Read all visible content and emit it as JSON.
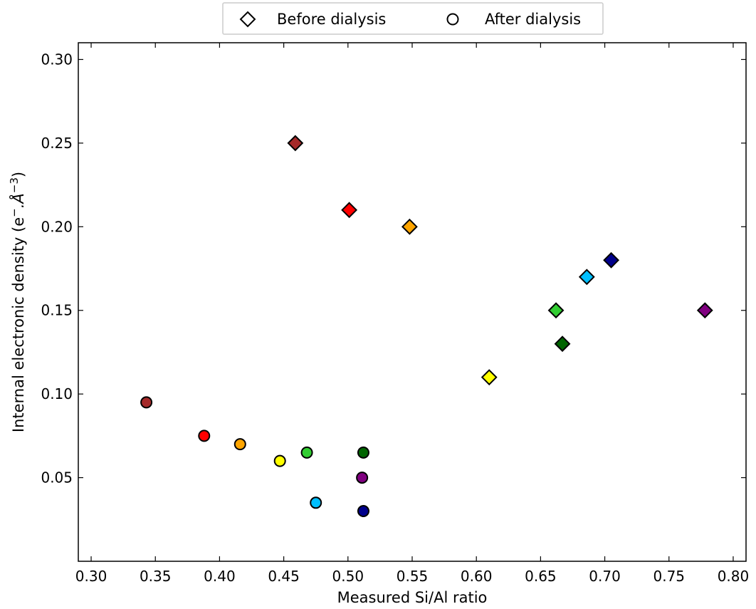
{
  "chart_data": {
    "type": "scatter",
    "xlabel": "Measured Si/Al ratio",
    "ylabel": "Internal electronic density (e",
    "ylabel_sup1": "−",
    "ylabel_mid": ".Å",
    "ylabel_sup2": "−3",
    "ylabel_close": ")",
    "xlim": [
      0.29,
      0.81
    ],
    "ylim": [
      0.0,
      0.31
    ],
    "xticks": [
      "0.30",
      "0.35",
      "0.40",
      "0.45",
      "0.50",
      "0.55",
      "0.60",
      "0.65",
      "0.70",
      "0.75",
      "0.80"
    ],
    "yticks": [
      "0.05",
      "0.10",
      "0.15",
      "0.20",
      "0.25",
      "0.30"
    ],
    "legend_position": "top-center, outside",
    "grid": false,
    "series": [
      {
        "name": "Before dialysis",
        "marker": "diamond",
        "points": [
          {
            "x": 0.459,
            "y": 0.25,
            "color": "#a52a2a"
          },
          {
            "x": 0.501,
            "y": 0.21,
            "color": "#ff0000"
          },
          {
            "x": 0.548,
            "y": 0.2,
            "color": "#ffa500"
          },
          {
            "x": 0.61,
            "y": 0.11,
            "color": "#ffff00"
          },
          {
            "x": 0.662,
            "y": 0.15,
            "color": "#32cd32"
          },
          {
            "x": 0.667,
            "y": 0.13,
            "color": "#006400"
          },
          {
            "x": 0.686,
            "y": 0.17,
            "color": "#00bfff"
          },
          {
            "x": 0.705,
            "y": 0.18,
            "color": "#00008b"
          },
          {
            "x": 0.778,
            "y": 0.15,
            "color": "#800080"
          }
        ]
      },
      {
        "name": "After dialysis",
        "marker": "circle",
        "points": [
          {
            "x": 0.343,
            "y": 0.095,
            "color": "#a52a2a"
          },
          {
            "x": 0.388,
            "y": 0.075,
            "color": "#ff0000"
          },
          {
            "x": 0.416,
            "y": 0.07,
            "color": "#ffa500"
          },
          {
            "x": 0.447,
            "y": 0.06,
            "color": "#ffff00"
          },
          {
            "x": 0.468,
            "y": 0.065,
            "color": "#32cd32"
          },
          {
            "x": 0.475,
            "y": 0.035,
            "color": "#00bfff"
          },
          {
            "x": 0.511,
            "y": 0.05,
            "color": "#800080"
          },
          {
            "x": 0.512,
            "y": 0.065,
            "color": "#006400"
          },
          {
            "x": 0.512,
            "y": 0.03,
            "color": "#00008b"
          }
        ]
      }
    ]
  }
}
